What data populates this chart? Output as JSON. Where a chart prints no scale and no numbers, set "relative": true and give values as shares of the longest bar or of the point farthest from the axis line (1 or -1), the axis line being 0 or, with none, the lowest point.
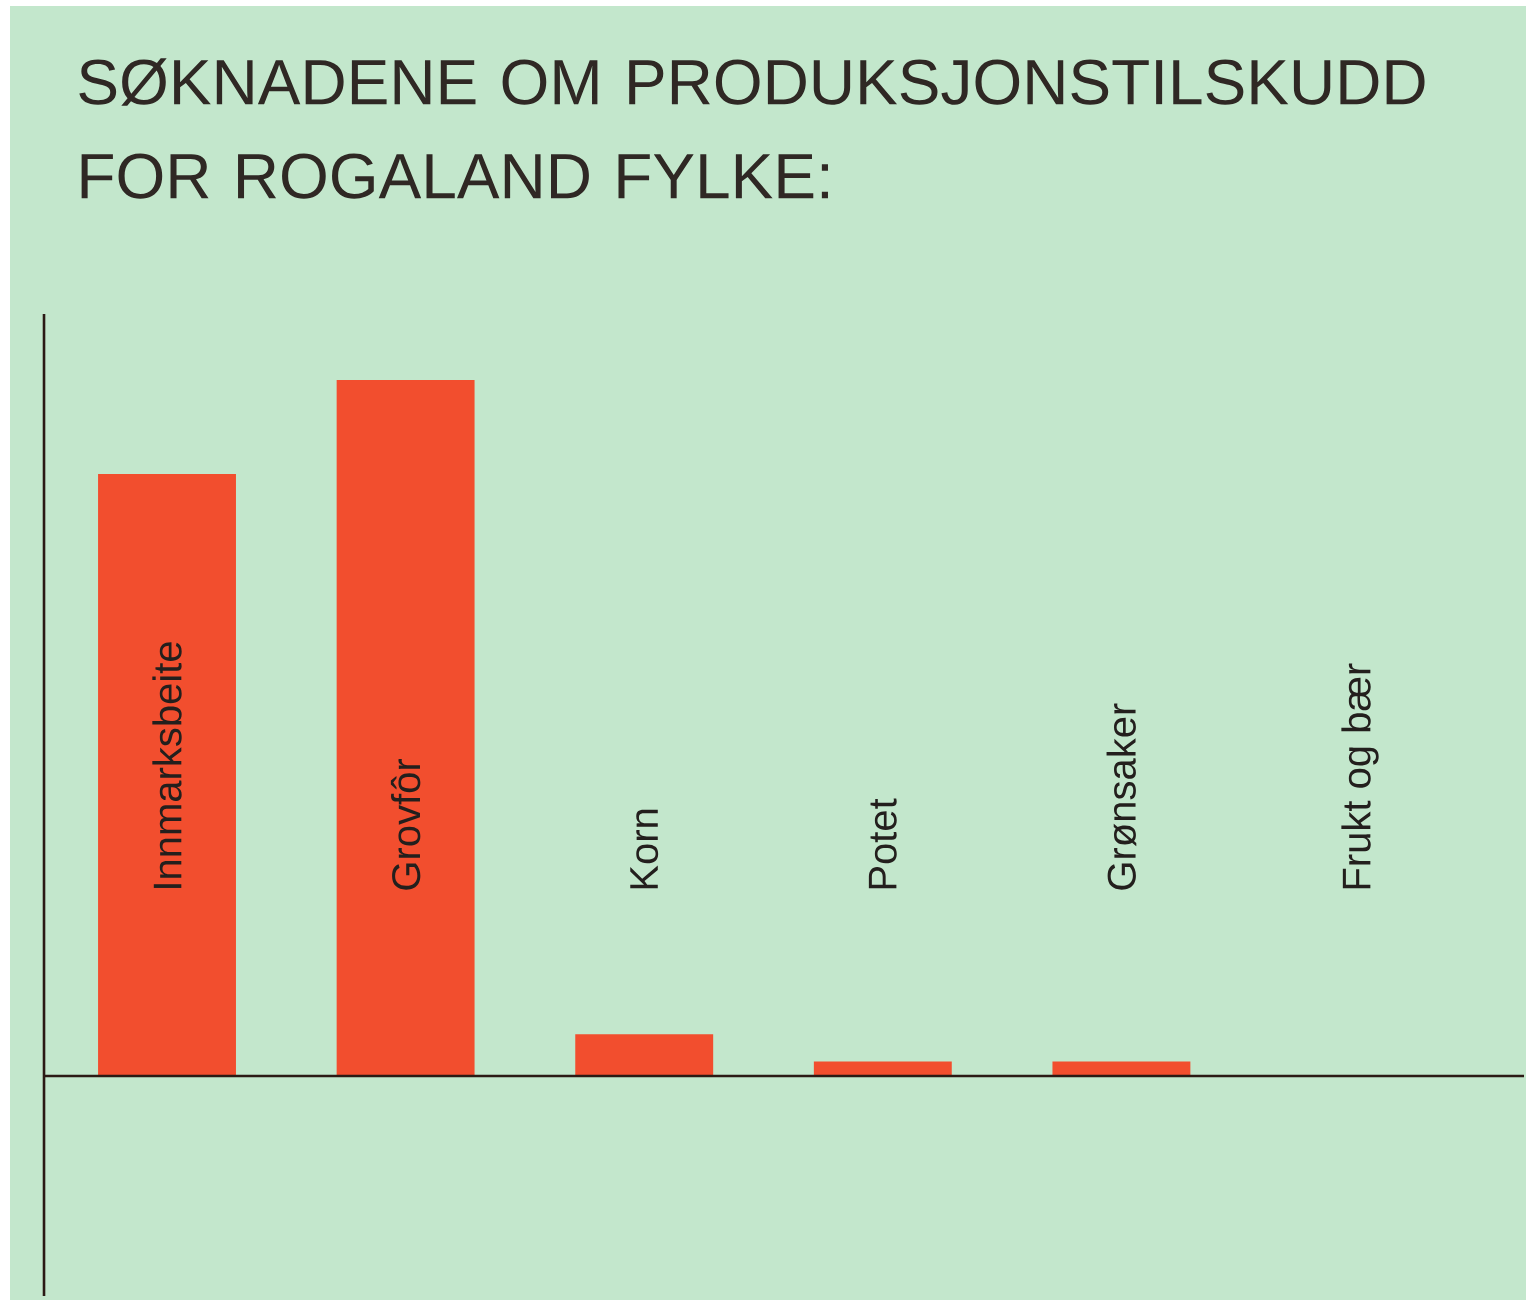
{
  "chart_data": {
    "type": "bar",
    "title": "SØKNADENE OM PRODUKSJONSTILSKUDD FOR ROGALAND FYLKE:",
    "categories": [
      "Innmarksbeite",
      "Grovfôr",
      "Korn",
      "Potet",
      "Grønsaker",
      "Frukt og bær"
    ],
    "values": [
      0.865,
      1,
      0.06,
      0.021,
      0.021,
      0
    ],
    "color": "#f24e2e",
    "relative": true
  }
}
